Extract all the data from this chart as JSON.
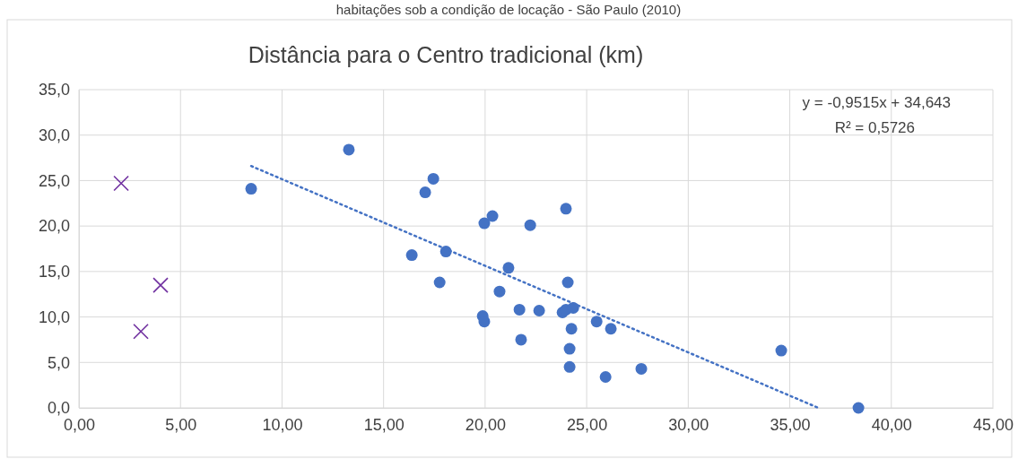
{
  "chart_data": {
    "type": "scatter",
    "title": "Distância para o  Centro tradicional (km)",
    "subtitle": "habitações sob a condição de locação - São Paulo (2010)",
    "annotations": [
      "y = -0,9515x + 34,643",
      "R² = 0,5726"
    ],
    "xlim": [
      0,
      45
    ],
    "xticks": [
      {
        "value": 0,
        "label": "0,00"
      },
      {
        "value": 5,
        "label": "5,00"
      },
      {
        "value": 10,
        "label": "10,00"
      },
      {
        "value": 15,
        "label": "15,00"
      },
      {
        "value": 20,
        "label": "20,00"
      },
      {
        "value": 25,
        "label": "25,00"
      },
      {
        "value": 30,
        "label": "30,00"
      },
      {
        "value": 35,
        "label": "35,00"
      },
      {
        "value": 40,
        "label": "40,00"
      },
      {
        "value": 45,
        "label": "45,00"
      }
    ],
    "ylim": [
      0,
      35
    ],
    "yticks": [
      {
        "value": 0,
        "label": "0,0"
      },
      {
        "value": 5,
        "label": "5,0"
      },
      {
        "value": 10,
        "label": "10,0"
      },
      {
        "value": 15,
        "label": "15,0"
      },
      {
        "value": 20,
        "label": "20,0"
      },
      {
        "value": 25,
        "label": "25,0"
      },
      {
        "value": 30,
        "label": "30,0"
      },
      {
        "value": 35,
        "label": "35,0"
      }
    ],
    "grid": true,
    "series": [
      {
        "color": "#4472c4",
        "marker": "circle",
        "x": [
          8.48,
          13.29,
          16.39,
          17.05,
          17.45,
          17.76,
          18.07,
          19.88,
          19.96,
          19.96,
          20.36,
          20.71,
          21.15,
          21.69,
          21.77,
          22.22,
          22.66,
          23.81,
          23.98,
          23.98,
          24.07,
          24.34,
          24.25,
          24.16,
          24.16,
          25.49,
          26.19,
          25.93,
          27.69,
          34.58,
          38.38
        ],
        "values": [
          24.1,
          28.4,
          16.8,
          23.7,
          25.2,
          13.8,
          17.2,
          10.1,
          9.5,
          20.3,
          21.1,
          12.8,
          15.4,
          10.8,
          7.5,
          20.1,
          10.7,
          10.5,
          10.8,
          21.9,
          13.8,
          11.0,
          8.7,
          6.5,
          4.5,
          9.5,
          8.7,
          3.4,
          4.3,
          6.3,
          0.0
        ]
      },
      {
        "color": "#7030a0",
        "marker": "cross",
        "x": [
          2.08,
          4.02,
          3.05
        ],
        "values": [
          24.7,
          13.5,
          8.4
        ]
      },
      {
        "type": "line",
        "color": "#4472c4",
        "marker": "none",
        "line_style": "dotted",
        "x": [
          8.48,
          36.41
        ],
        "values": [
          26.6,
          0
        ]
      }
    ]
  }
}
